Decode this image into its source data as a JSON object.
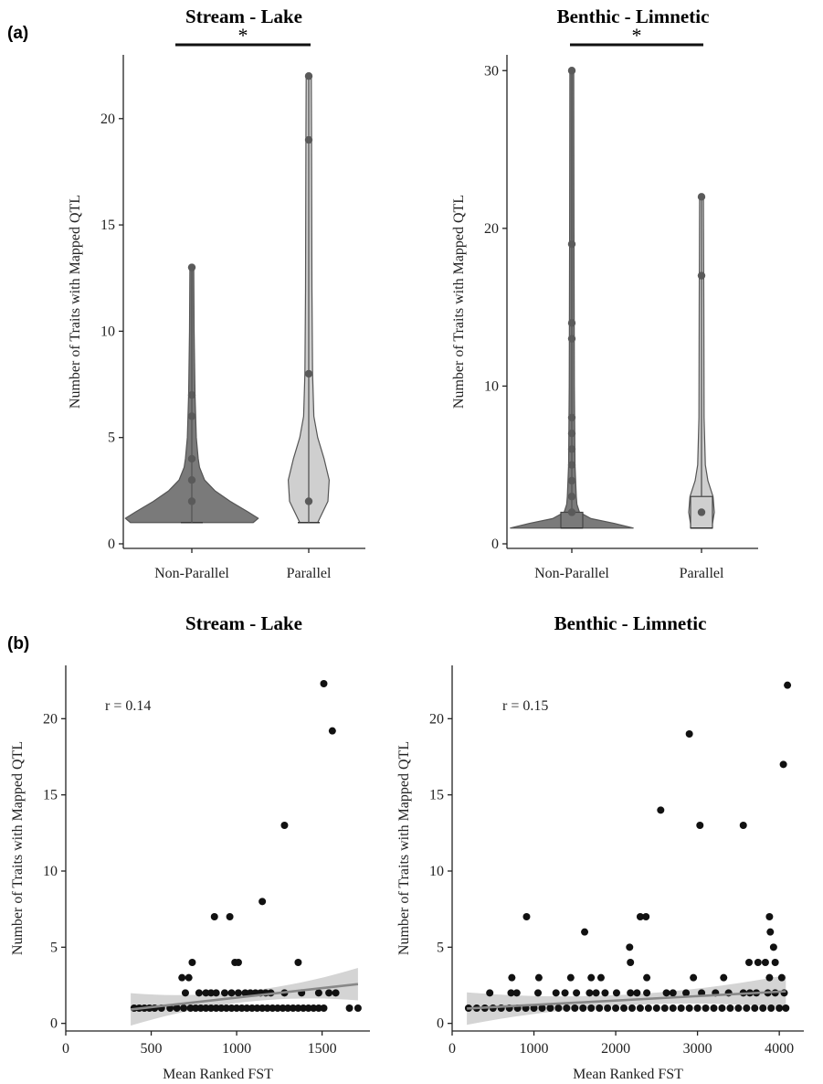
{
  "panel_labels": [
    "(a)",
    "(b)"
  ],
  "chart_data": [
    {
      "type": "violin",
      "panel": "(a)",
      "title": "Stream - Lake",
      "xlabel": "",
      "ylabel": "Number of Traits with Mapped QTL",
      "categories": [
        "Non-Parallel",
        "Parallel"
      ],
      "ylim": [
        0,
        23
      ],
      "yticks": [
        0,
        5,
        10,
        15,
        20
      ],
      "significance": {
        "label": "*",
        "between": [
          "Non-Parallel",
          "Parallel"
        ]
      },
      "colors": [
        "#7a7a7a",
        "#cfcfcf"
      ],
      "series": [
        {
          "values": [
            1,
            2,
            3,
            4,
            6,
            7,
            13
          ],
          "box": {
            "q1": 1,
            "median": 1,
            "q3": 1
          },
          "density": [
            [
              1,
              0.48
            ],
            [
              1.2,
              0.52
            ],
            [
              1.5,
              0.44
            ],
            [
              2,
              0.3
            ],
            [
              2.5,
              0.18
            ],
            [
              3,
              0.1
            ],
            [
              3.6,
              0.06
            ],
            [
              4,
              0.05
            ],
            [
              5,
              0.035
            ],
            [
              7,
              0.025
            ],
            [
              10,
              0.018
            ],
            [
              13,
              0.015
            ]
          ]
        },
        {
          "values": [
            1,
            2,
            8,
            19,
            22
          ],
          "box": {
            "q1": 1,
            "median": 1,
            "q3": 1
          },
          "density": [
            [
              1,
              0.07
            ],
            [
              2,
              0.15
            ],
            [
              3,
              0.16
            ],
            [
              4,
              0.12
            ],
            [
              5,
              0.07
            ],
            [
              6,
              0.04
            ],
            [
              8,
              0.03
            ],
            [
              12,
              0.025
            ],
            [
              19,
              0.022
            ],
            [
              22,
              0.02
            ]
          ]
        }
      ]
    },
    {
      "type": "violin",
      "panel": "(a)",
      "title": "Benthic - Limnetic",
      "xlabel": "",
      "ylabel": "Number of Traits with Mapped QTL",
      "categories": [
        "Non-Parallel",
        "Parallel"
      ],
      "ylim": [
        0,
        31
      ],
      "yticks": [
        0,
        10,
        20,
        30
      ],
      "significance": {
        "label": "*",
        "between": [
          "Non-Parallel",
          "Parallel"
        ]
      },
      "colors": [
        "#7a7a7a",
        "#cfcfcf"
      ],
      "series": [
        {
          "values": [
            1,
            2,
            3,
            4,
            5,
            6,
            7,
            8,
            13,
            14,
            19,
            30
          ],
          "box": {
            "q1": 1,
            "median": 1,
            "q3": 2
          },
          "density": [
            [
              1,
              0.48
            ],
            [
              1.3,
              0.33
            ],
            [
              1.6,
              0.15
            ],
            [
              2,
              0.06
            ],
            [
              2.5,
              0.04
            ],
            [
              3,
              0.035
            ],
            [
              5,
              0.025
            ],
            [
              10,
              0.02
            ],
            [
              20,
              0.017
            ],
            [
              30,
              0.015
            ]
          ]
        },
        {
          "values": [
            1,
            2,
            3,
            17,
            22
          ],
          "box": {
            "q1": 1,
            "median": 1,
            "q3": 3
          },
          "density": [
            [
              1,
              0.08
            ],
            [
              2,
              0.1
            ],
            [
              3,
              0.09
            ],
            [
              4,
              0.05
            ],
            [
              5,
              0.03
            ],
            [
              8,
              0.02
            ],
            [
              15,
              0.018
            ],
            [
              22,
              0.015
            ]
          ]
        }
      ]
    },
    {
      "type": "scatter",
      "panel": "(b)",
      "title": "Stream - Lake",
      "xlabel": "Mean Ranked FST",
      "ylabel": "Number of Traits with Mapped QTL",
      "annotation": "r = 0.14",
      "xlim": [
        0,
        1780
      ],
      "ylim": [
        -0.5,
        23.5
      ],
      "xticks": [
        0,
        500,
        1000,
        1500
      ],
      "yticks": [
        0,
        5,
        10,
        15,
        20
      ],
      "points": [
        [
          400,
          1
        ],
        [
          430,
          1
        ],
        [
          460,
          1
        ],
        [
          490,
          1
        ],
        [
          520,
          1
        ],
        [
          560,
          1
        ],
        [
          610,
          1
        ],
        [
          650,
          1
        ],
        [
          690,
          1
        ],
        [
          730,
          1
        ],
        [
          760,
          1
        ],
        [
          790,
          1
        ],
        [
          820,
          1
        ],
        [
          850,
          1
        ],
        [
          880,
          1
        ],
        [
          910,
          1
        ],
        [
          940,
          1
        ],
        [
          970,
          1
        ],
        [
          1000,
          1
        ],
        [
          1030,
          1
        ],
        [
          1060,
          1
        ],
        [
          1090,
          1
        ],
        [
          1120,
          1
        ],
        [
          1150,
          1
        ],
        [
          1180,
          1
        ],
        [
          1210,
          1
        ],
        [
          1240,
          1
        ],
        [
          1270,
          1
        ],
        [
          1300,
          1
        ],
        [
          1330,
          1
        ],
        [
          1360,
          1
        ],
        [
          1390,
          1
        ],
        [
          1420,
          1
        ],
        [
          1450,
          1
        ],
        [
          1480,
          1
        ],
        [
          1510,
          1
        ],
        [
          1660,
          1
        ],
        [
          1710,
          1
        ],
        [
          700,
          2
        ],
        [
          780,
          2
        ],
        [
          820,
          2
        ],
        [
          850,
          2
        ],
        [
          880,
          2
        ],
        [
          930,
          2
        ],
        [
          970,
          2
        ],
        [
          1010,
          2
        ],
        [
          1050,
          2
        ],
        [
          1080,
          2
        ],
        [
          1110,
          2
        ],
        [
          1140,
          2
        ],
        [
          1170,
          2
        ],
        [
          1200,
          2
        ],
        [
          1280,
          2
        ],
        [
          1380,
          2
        ],
        [
          1480,
          2
        ],
        [
          1540,
          2
        ],
        [
          1580,
          2
        ],
        [
          680,
          3
        ],
        [
          720,
          3
        ],
        [
          740,
          4
        ],
        [
          990,
          4
        ],
        [
          1010,
          4
        ],
        [
          1360,
          4
        ],
        [
          870,
          7
        ],
        [
          960,
          7
        ],
        [
          1150,
          8
        ],
        [
          1280,
          13
        ],
        [
          1510,
          22.3
        ],
        [
          1560,
          19.2
        ]
      ],
      "trend": {
        "intercept": 0.44,
        "slope": 0.00125,
        "x_range": [
          380,
          1710
        ]
      }
    },
    {
      "type": "scatter",
      "panel": "(b)",
      "title": "Benthic - Limnetic",
      "xlabel": "Mean Ranked FST",
      "ylabel": "Number of Traits with Mapped QTL",
      "annotation": "r = 0.15",
      "xlim": [
        0,
        4300
      ],
      "ylim": [
        -0.5,
        23.5
      ],
      "xticks": [
        0,
        1000,
        2000,
        3000,
        4000
      ],
      "yticks": [
        0,
        5,
        10,
        15,
        20
      ],
      "points": [
        [
          200,
          1
        ],
        [
          300,
          1
        ],
        [
          400,
          1
        ],
        [
          500,
          1
        ],
        [
          600,
          1
        ],
        [
          700,
          1
        ],
        [
          800,
          1
        ],
        [
          900,
          1
        ],
        [
          1000,
          1
        ],
        [
          1100,
          1
        ],
        [
          1200,
          1
        ],
        [
          1300,
          1
        ],
        [
          1400,
          1
        ],
        [
          1500,
          1
        ],
        [
          1600,
          1
        ],
        [
          1700,
          1
        ],
        [
          1800,
          1
        ],
        [
          1900,
          1
        ],
        [
          2000,
          1
        ],
        [
          2100,
          1
        ],
        [
          2200,
          1
        ],
        [
          2300,
          1
        ],
        [
          2400,
          1
        ],
        [
          2500,
          1
        ],
        [
          2600,
          1
        ],
        [
          2700,
          1
        ],
        [
          2800,
          1
        ],
        [
          2900,
          1
        ],
        [
          3000,
          1
        ],
        [
          3100,
          1
        ],
        [
          3200,
          1
        ],
        [
          3300,
          1
        ],
        [
          3400,
          1
        ],
        [
          3500,
          1
        ],
        [
          3600,
          1
        ],
        [
          3700,
          1
        ],
        [
          3800,
          1
        ],
        [
          3900,
          1
        ],
        [
          4000,
          1
        ],
        [
          4080,
          1
        ],
        [
          460,
          2
        ],
        [
          720,
          2
        ],
        [
          790,
          2
        ],
        [
          1050,
          2
        ],
        [
          1270,
          2
        ],
        [
          1380,
          2
        ],
        [
          1520,
          2
        ],
        [
          1680,
          2
        ],
        [
          1760,
          2
        ],
        [
          1870,
          2
        ],
        [
          2010,
          2
        ],
        [
          2180,
          2
        ],
        [
          2260,
          2
        ],
        [
          2380,
          2
        ],
        [
          2620,
          2
        ],
        [
          2700,
          2
        ],
        [
          2860,
          2
        ],
        [
          3050,
          2
        ],
        [
          3220,
          2
        ],
        [
          3380,
          2
        ],
        [
          3560,
          2
        ],
        [
          3640,
          2
        ],
        [
          3720,
          2
        ],
        [
          3860,
          2
        ],
        [
          3950,
          2
        ],
        [
          4060,
          2
        ],
        [
          730,
          3
        ],
        [
          1060,
          3
        ],
        [
          1450,
          3
        ],
        [
          1700,
          3
        ],
        [
          1820,
          3
        ],
        [
          2380,
          3
        ],
        [
          2950,
          3
        ],
        [
          3320,
          3
        ],
        [
          3880,
          3
        ],
        [
          4030,
          3
        ],
        [
          3630,
          4
        ],
        [
          3740,
          4
        ],
        [
          3830,
          4
        ],
        [
          3950,
          4
        ],
        [
          2180,
          4
        ],
        [
          1620,
          6
        ],
        [
          2170,
          5
        ],
        [
          3930,
          5
        ],
        [
          3890,
          6
        ],
        [
          3880,
          7
        ],
        [
          910,
          7
        ],
        [
          2300,
          7
        ],
        [
          2370,
          7
        ],
        [
          2550,
          14
        ],
        [
          2900,
          19
        ],
        [
          3030,
          13
        ],
        [
          3560,
          13
        ],
        [
          4050,
          17
        ],
        [
          4100,
          22.2
        ]
      ],
      "trend": {
        "intercept": 0.92,
        "slope": 0.00029,
        "x_range": [
          180,
          4080
        ]
      }
    }
  ]
}
